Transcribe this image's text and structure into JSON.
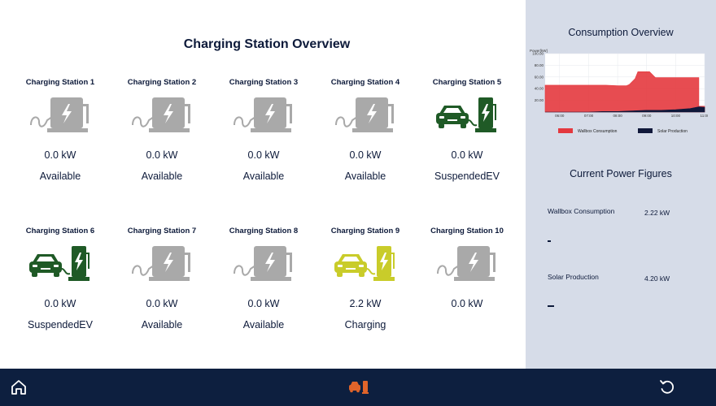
{
  "main": {
    "title": "Charging Station Overview",
    "stations": [
      {
        "name": "Charging Station 1",
        "power": "0.0 kW",
        "status": "Available",
        "icon": "charger-icon"
      },
      {
        "name": "Charging Station 2",
        "power": "0.0 kW",
        "status": "Available",
        "icon": "charger-icon"
      },
      {
        "name": "Charging Station 3",
        "power": "0.0 kW",
        "status": "Available",
        "icon": "charger-icon"
      },
      {
        "name": "Charging Station 4",
        "power": "0.0 kW",
        "status": "Available",
        "icon": "charger-icon"
      },
      {
        "name": "Charging Station 5",
        "power": "0.0 kW",
        "status": "SuspendedEV",
        "icon": "car-charger-icon"
      },
      {
        "name": "Charging Station 6",
        "power": "0.0 kW",
        "status": "SuspendedEV",
        "icon": "car-charger-icon"
      },
      {
        "name": "Charging Station 7",
        "power": "0.0 kW",
        "status": "Available",
        "icon": "charger-icon"
      },
      {
        "name": "Charging Station 8",
        "power": "0.0 kW",
        "status": "Available",
        "icon": "charger-icon"
      },
      {
        "name": "Charging Station 9",
        "power": "2.2 kW",
        "status": "Charging",
        "icon": "car-charger-icon"
      },
      {
        "name": "Charging Station 10",
        "power": "0.0 kW",
        "status": "",
        "icon": "charger-icon"
      }
    ]
  },
  "colors": {
    "available": "#a9a9a9",
    "suspended": "#1f5a26",
    "charging": "#c9cc2a",
    "wallbox": "#e4383e",
    "solar": "#10183a",
    "nav_active": "#e0642a"
  },
  "sidebar": {
    "chart_title": "Consumption Overview",
    "power_title": "Current Power Figures",
    "metrics": [
      {
        "label": "Wallbox Consumption",
        "value": "2.22 kW",
        "bar_fraction": 0.02
      },
      {
        "label": "Solar Production",
        "value": "4.20 kW",
        "bar_fraction": 0.04
      }
    ]
  },
  "chart_data": {
    "type": "area",
    "ylabel": "Power[kW]",
    "ylim": [
      0,
      100
    ],
    "yticks": [
      "100.00",
      "80.00",
      "60.00",
      "40.00",
      "20.00"
    ],
    "xticks": [
      "06:00",
      "07:00",
      "08:00",
      "09:00",
      "10:00",
      "11:00"
    ],
    "grid": true,
    "legend_placement": "bottom",
    "series": [
      {
        "name": "Wallbox Consumption",
        "points": [
          [
            5.5,
            46
          ],
          [
            6.5,
            46
          ],
          [
            7.6,
            46
          ],
          [
            8.0,
            45
          ],
          [
            8.3,
            45
          ],
          [
            8.4,
            47
          ],
          [
            8.6,
            57
          ],
          [
            8.7,
            69
          ],
          [
            9.1,
            69
          ],
          [
            9.3,
            59
          ],
          [
            10.8,
            59
          ],
          [
            10.8,
            10
          ],
          [
            11.0,
            10
          ]
        ]
      },
      {
        "name": "Solar Production",
        "points": [
          [
            5.5,
            0
          ],
          [
            6.5,
            0
          ],
          [
            7.0,
            0
          ],
          [
            7.5,
            1
          ],
          [
            8.0,
            1
          ],
          [
            8.5,
            2
          ],
          [
            9.0,
            3
          ],
          [
            9.5,
            3
          ],
          [
            10.0,
            4
          ],
          [
            10.5,
            6
          ],
          [
            10.8,
            9
          ],
          [
            11.0,
            8
          ]
        ]
      }
    ]
  },
  "nav": {
    "home_icon": "home-icon",
    "center_icon": "car-charger-icon",
    "refresh_icon": "refresh-icon"
  }
}
